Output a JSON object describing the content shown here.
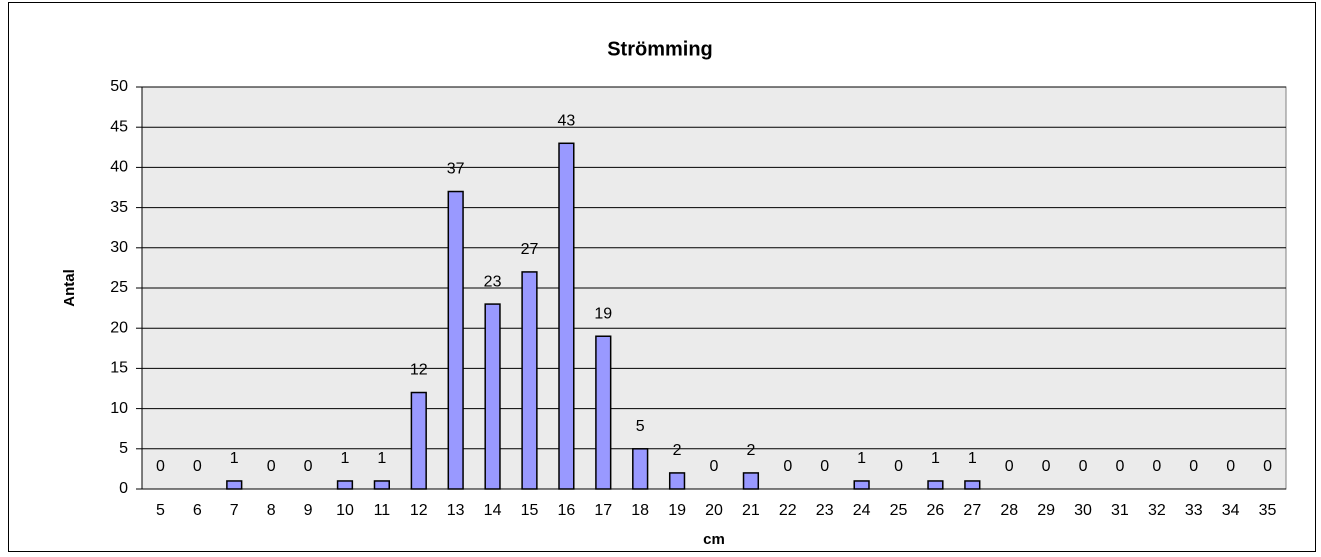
{
  "chart_data": {
    "type": "bar",
    "title": "Strömming",
    "x_label": "cm",
    "y_label": "Antal",
    "categories": [
      "5",
      "6",
      "7",
      "8",
      "9",
      "10",
      "11",
      "12",
      "13",
      "14",
      "15",
      "16",
      "17",
      "18",
      "19",
      "20",
      "21",
      "22",
      "23",
      "24",
      "25",
      "26",
      "27",
      "28",
      "29",
      "30",
      "31",
      "32",
      "33",
      "34",
      "35"
    ],
    "values": [
      0,
      0,
      1,
      0,
      0,
      1,
      1,
      12,
      37,
      23,
      27,
      43,
      19,
      5,
      2,
      0,
      2,
      0,
      0,
      1,
      0,
      1,
      1,
      0,
      0,
      0,
      0,
      0,
      0,
      0,
      0
    ],
    "color": "#9999ff",
    "ylim": [
      0,
      50
    ],
    "yticks": [
      0,
      5,
      10,
      15,
      20,
      25,
      30,
      35,
      40,
      45,
      50
    ],
    "grid": true
  }
}
